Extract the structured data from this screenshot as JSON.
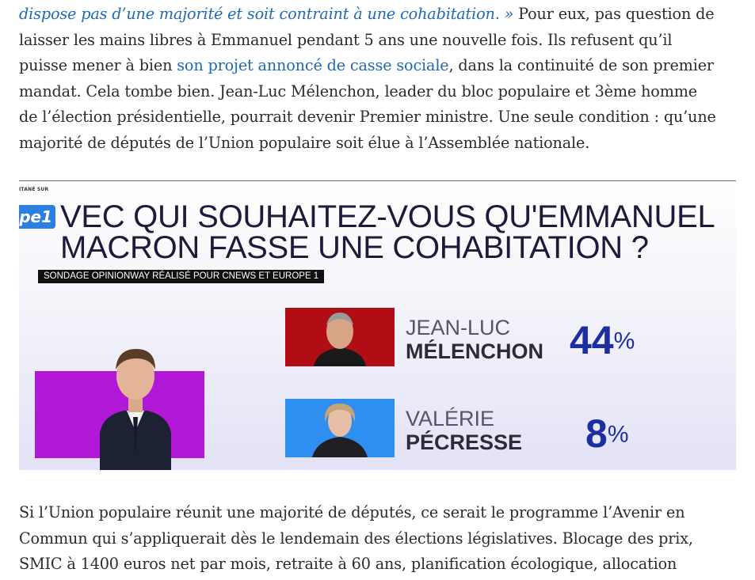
{
  "article": {
    "para1": {
      "line1_italic_link": "dispose pas d’une majorité et soit contraint à une cohabitation. »",
      "line1_rest": " Pour eux, pas question de",
      "line2": "laisser les mains libres à Emmanuel pendant 5 ans une nouvelle fois. Ils refusent qu’il",
      "line3_start": "puisse mener à bien ",
      "line3_link": "son projet annoncé de casse sociale",
      "line3_end": ", dans la continuité de son premier",
      "line4": "mandat. Cela tombe bien. Jean-Luc Mélenchon, leader du bloc populaire et 3ème homme",
      "line5": "de l’élection présidentielle, pourrait devenir Premier ministre. Une seule condition : qu’une",
      "line6": "majorité de députés de l’Union populaire soit élue à l’Assemblée nationale."
    },
    "para2": {
      "line1": "Si l’Union populaire réunit une majorité de députés, ce serait le programme l’Avenir en",
      "line2": "Commun qui s’appliquerait dès le lendemain des élections législatives. Blocage des prix,",
      "line3": "SMIC à 1400 euros net par mois, retraite à 60 ans, planification écologique, allocation"
    }
  },
  "broadcast": {
    "corner_tag": "ITANÉ SUR",
    "logo_text": "pe1",
    "headline_line1": "VEC QUI SOUHAITEZ-VOUS QU'EMMANUEL",
    "headline_line2": "MACRON FASSE UNE COHABITATION ?",
    "subtag": "SONDAGE OPINIONWAY RÉALISÉ POUR CNEWS ET EUROPE 1",
    "candidates": [
      {
        "first": "JEAN-LUC",
        "last": "MÉLENCHON",
        "value": "44",
        "unit": "%",
        "photo_bg": "#b00d14"
      },
      {
        "first": "VALÉRIE",
        "last": "PÉCRESSE",
        "value": "8",
        "unit": "%",
        "photo_bg": "#2f8ff0"
      }
    ],
    "colors": {
      "percent": "#1d2fa0",
      "macron_box": "#b218d8"
    }
  }
}
